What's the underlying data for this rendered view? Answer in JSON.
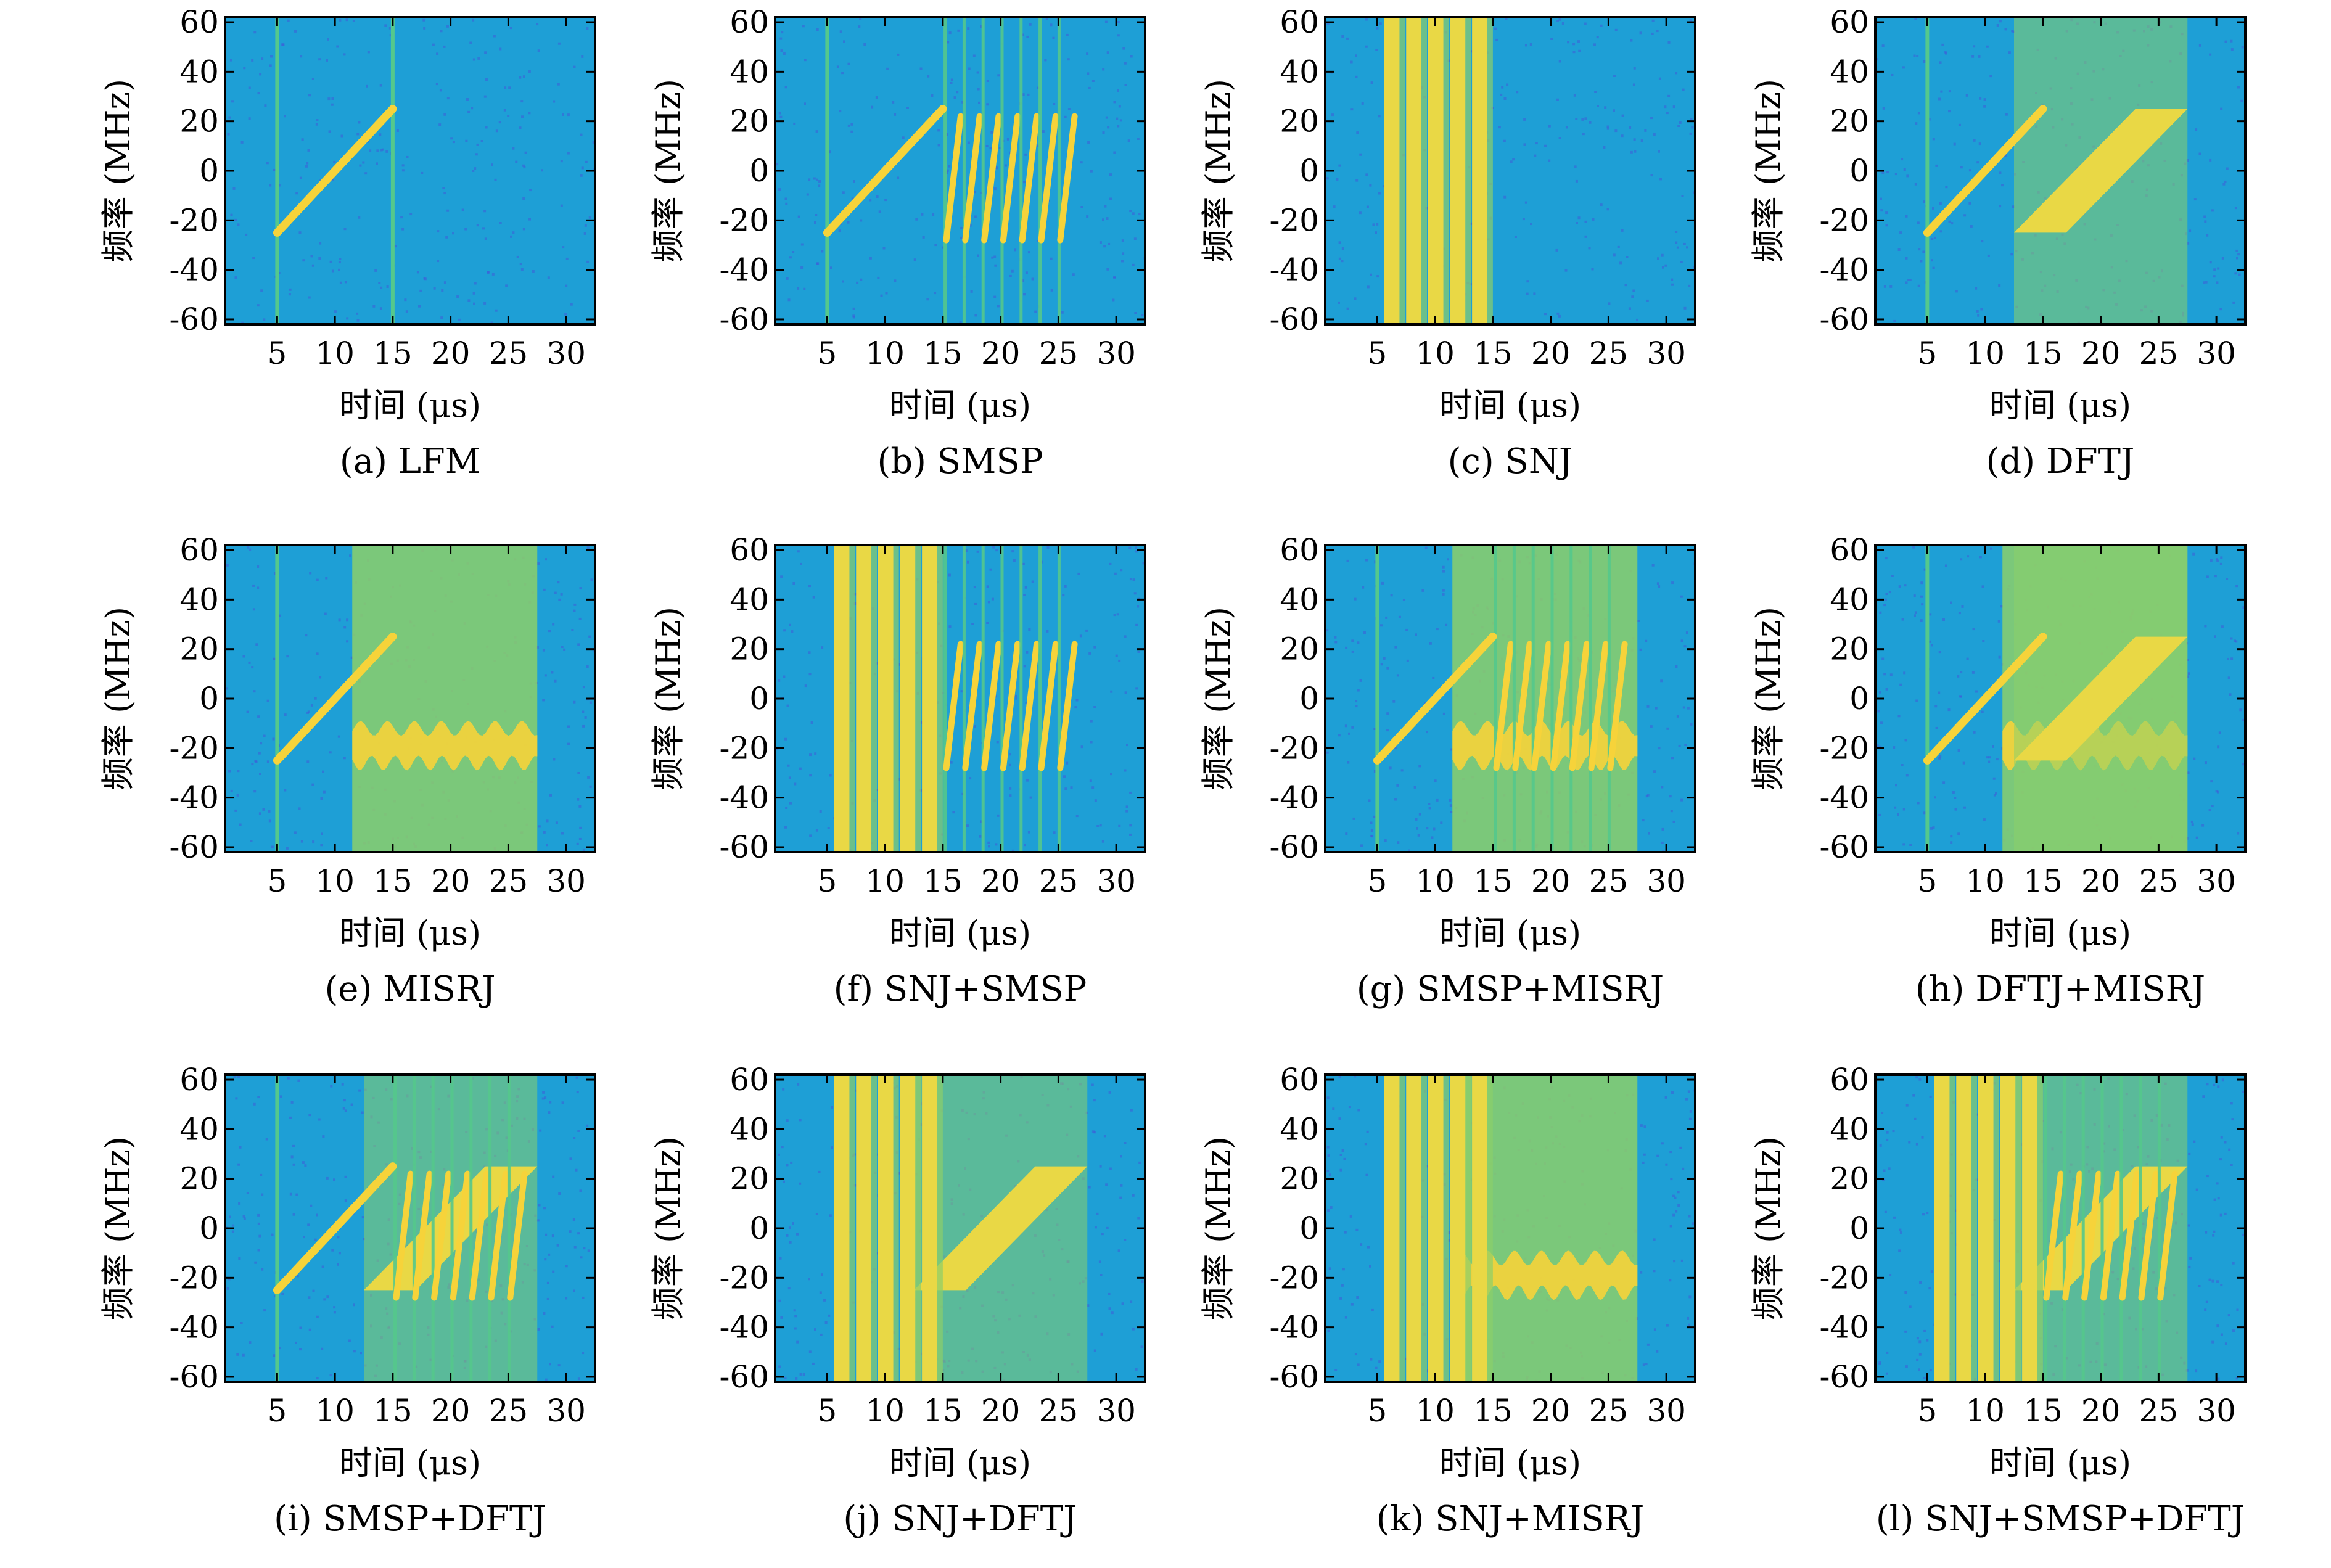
{
  "figure": {
    "colors": {
      "background": "#1e9fd6",
      "noise_low": "#3f5bd8",
      "chirp": "#f6d33a",
      "jam_dense": "#e9d845",
      "jam_mid": "#8ccf6a",
      "edge_line": "#55c88c",
      "axes": "#000000"
    }
  },
  "chart_data": [
    {
      "type": "heatmap",
      "caption": "(a) LFM",
      "xlabel": "时间 (μs)",
      "ylabel": "频率 (MHz)",
      "xticks": [
        5,
        10,
        15,
        20,
        25,
        30
      ],
      "yticks": [
        -60,
        -40,
        -20,
        0,
        20,
        40,
        60
      ],
      "xlim": [
        0.5,
        32.5
      ],
      "ylim": [
        -62,
        62
      ],
      "components": [
        {
          "kind": "lfm",
          "t_start": 5,
          "t_end": 15,
          "f_start": -25,
          "f_end": 25
        }
      ]
    },
    {
      "type": "heatmap",
      "caption": "(b) SMSP",
      "xlabel": "时间 (μs)",
      "ylabel": "频率 (MHz)",
      "xticks": [
        5,
        10,
        15,
        20,
        25,
        30
      ],
      "yticks": [
        -60,
        -40,
        -20,
        0,
        20,
        40,
        60
      ],
      "xlim": [
        0.5,
        32.5
      ],
      "ylim": [
        -62,
        62
      ],
      "components": [
        {
          "kind": "lfm",
          "t_start": 5,
          "t_end": 15,
          "f_start": -25,
          "f_end": 25
        },
        {
          "kind": "smsp",
          "t_start": 15,
          "t_end": 26.5,
          "count": 7
        }
      ]
    },
    {
      "type": "heatmap",
      "caption": "(c) SNJ",
      "xlabel": "时间 (μs)",
      "ylabel": "频率 (MHz)",
      "xticks": [
        5,
        10,
        15,
        20,
        25,
        30
      ],
      "yticks": [
        -60,
        -40,
        -20,
        0,
        20,
        40,
        60
      ],
      "xlim": [
        0.5,
        32.5
      ],
      "ylim": [
        -62,
        62
      ],
      "components": [
        {
          "kind": "snj",
          "t_start": 5.5,
          "t_end": 15,
          "count": 5
        }
      ]
    },
    {
      "type": "heatmap",
      "caption": "(d) DFTJ",
      "xlabel": "时间 (μs)",
      "ylabel": "频率 (MHz)",
      "xticks": [
        5,
        10,
        15,
        20,
        25,
        30
      ],
      "yticks": [
        -60,
        -40,
        -20,
        0,
        20,
        40,
        60
      ],
      "xlim": [
        0.5,
        32.5
      ],
      "ylim": [
        -62,
        62
      ],
      "components": [
        {
          "kind": "lfm",
          "t_start": 5,
          "t_end": 15,
          "f_start": -25,
          "f_end": 25
        },
        {
          "kind": "dftj",
          "t_start": 12.5,
          "t_end": 27.5
        }
      ]
    },
    {
      "type": "heatmap",
      "caption": "(e) MISRJ",
      "xlabel": "时间 (μs)",
      "ylabel": "频率 (MHz)",
      "xticks": [
        5,
        10,
        15,
        20,
        25,
        30
      ],
      "yticks": [
        -60,
        -40,
        -20,
        0,
        20,
        40,
        60
      ],
      "xlim": [
        0.5,
        32.5
      ],
      "ylim": [
        -62,
        62
      ],
      "components": [
        {
          "kind": "lfm",
          "t_start": 5,
          "t_end": 15,
          "f_start": -25,
          "f_end": 25
        },
        {
          "kind": "misrj",
          "t_start": 11.5,
          "t_end": 27.5
        }
      ]
    },
    {
      "type": "heatmap",
      "caption": "(f) SNJ+SMSP",
      "xlabel": "时间 (μs)",
      "ylabel": "频率 (MHz)",
      "xticks": [
        5,
        10,
        15,
        20,
        25,
        30
      ],
      "yticks": [
        -60,
        -40,
        -20,
        0,
        20,
        40,
        60
      ],
      "xlim": [
        0.5,
        32.5
      ],
      "ylim": [
        -62,
        62
      ],
      "components": [
        {
          "kind": "snj",
          "t_start": 5.5,
          "t_end": 15,
          "count": 5
        },
        {
          "kind": "smsp",
          "t_start": 15,
          "t_end": 26.5,
          "count": 7
        }
      ]
    },
    {
      "type": "heatmap",
      "caption": "(g) SMSP+MISRJ",
      "xlabel": "时间 (μs)",
      "ylabel": "频率 (MHz)",
      "xticks": [
        5,
        10,
        15,
        20,
        25,
        30
      ],
      "yticks": [
        -60,
        -40,
        -20,
        0,
        20,
        40,
        60
      ],
      "xlim": [
        0.5,
        32.5
      ],
      "ylim": [
        -62,
        62
      ],
      "components": [
        {
          "kind": "lfm",
          "t_start": 5,
          "t_end": 15,
          "f_start": -25,
          "f_end": 25
        },
        {
          "kind": "misrj",
          "t_start": 11.5,
          "t_end": 27.5
        },
        {
          "kind": "smsp",
          "t_start": 15,
          "t_end": 26.5,
          "count": 7
        }
      ]
    },
    {
      "type": "heatmap",
      "caption": "(h) DFTJ+MISRJ",
      "xlabel": "时间 (μs)",
      "ylabel": "频率 (MHz)",
      "xticks": [
        5,
        10,
        15,
        20,
        25,
        30
      ],
      "yticks": [
        -60,
        -40,
        -20,
        0,
        20,
        40,
        60
      ],
      "xlim": [
        0.5,
        32.5
      ],
      "ylim": [
        -62,
        62
      ],
      "components": [
        {
          "kind": "lfm",
          "t_start": 5,
          "t_end": 15,
          "f_start": -25,
          "f_end": 25
        },
        {
          "kind": "misrj",
          "t_start": 11.5,
          "t_end": 27.5
        },
        {
          "kind": "dftj",
          "t_start": 12.5,
          "t_end": 27.5
        }
      ]
    },
    {
      "type": "heatmap",
      "caption": "(i) SMSP+DFTJ",
      "xlabel": "时间 (μs)",
      "ylabel": "频率 (MHz)",
      "xticks": [
        5,
        10,
        15,
        20,
        25,
        30
      ],
      "yticks": [
        -60,
        -40,
        -20,
        0,
        20,
        40,
        60
      ],
      "xlim": [
        0.5,
        32.5
      ],
      "ylim": [
        -62,
        62
      ],
      "components": [
        {
          "kind": "lfm",
          "t_start": 5,
          "t_end": 15,
          "f_start": -25,
          "f_end": 25
        },
        {
          "kind": "dftj",
          "t_start": 12.5,
          "t_end": 27.5
        },
        {
          "kind": "smsp",
          "t_start": 15,
          "t_end": 26.5,
          "count": 7
        }
      ]
    },
    {
      "type": "heatmap",
      "caption": "(j) SNJ+DFTJ",
      "xlabel": "时间 (μs)",
      "ylabel": "频率 (MHz)",
      "xticks": [
        5,
        10,
        15,
        20,
        25,
        30
      ],
      "yticks": [
        -60,
        -40,
        -20,
        0,
        20,
        40,
        60
      ],
      "xlim": [
        0.5,
        32.5
      ],
      "ylim": [
        -62,
        62
      ],
      "components": [
        {
          "kind": "snj",
          "t_start": 5.5,
          "t_end": 15,
          "count": 5
        },
        {
          "kind": "dftj",
          "t_start": 12.5,
          "t_end": 27.5
        }
      ]
    },
    {
      "type": "heatmap",
      "caption": "(k) SNJ+MISRJ",
      "xlabel": "时间 (μs)",
      "ylabel": "频率 (MHz)",
      "xticks": [
        5,
        10,
        15,
        20,
        25,
        30
      ],
      "yticks": [
        -60,
        -40,
        -20,
        0,
        20,
        40,
        60
      ],
      "xlim": [
        0.5,
        32.5
      ],
      "ylim": [
        -62,
        62
      ],
      "components": [
        {
          "kind": "snj",
          "t_start": 5.5,
          "t_end": 15,
          "count": 5
        },
        {
          "kind": "misrj",
          "t_start": 11.5,
          "t_end": 27.5
        }
      ]
    },
    {
      "type": "heatmap",
      "caption": "(l) SNJ+SMSP+DFTJ",
      "xlabel": "时间 (μs)",
      "ylabel": "频率 (MHz)",
      "xticks": [
        5,
        10,
        15,
        20,
        25,
        30
      ],
      "yticks": [
        -60,
        -40,
        -20,
        0,
        20,
        40,
        60
      ],
      "xlim": [
        0.5,
        32.5
      ],
      "ylim": [
        -62,
        62
      ],
      "components": [
        {
          "kind": "snj",
          "t_start": 5.5,
          "t_end": 15,
          "count": 5
        },
        {
          "kind": "dftj",
          "t_start": 12.5,
          "t_end": 27.5
        },
        {
          "kind": "smsp",
          "t_start": 15,
          "t_end": 26.5,
          "count": 7
        }
      ]
    }
  ]
}
